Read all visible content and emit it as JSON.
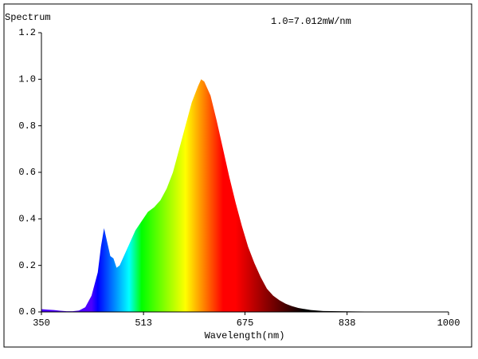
{
  "chart_data": {
    "type": "area",
    "title": "Spectrum",
    "annotation": "1.0=7.012mW/nm",
    "x_label": "Wavelength(nm)",
    "x": [
      350,
      360,
      370,
      380,
      390,
      400,
      410,
      420,
      430,
      440,
      445,
      450,
      455,
      460,
      465,
      470,
      475,
      480,
      490,
      500,
      510,
      520,
      530,
      540,
      550,
      560,
      570,
      580,
      590,
      600,
      605,
      610,
      620,
      630,
      640,
      650,
      660,
      670,
      680,
      690,
      700,
      710,
      720,
      730,
      740,
      750,
      760,
      780,
      800,
      850,
      900,
      950,
      1000
    ],
    "y": [
      0.012,
      0.01,
      0.008,
      0.005,
      0.003,
      0.003,
      0.006,
      0.02,
      0.07,
      0.17,
      0.28,
      0.36,
      0.3,
      0.24,
      0.23,
      0.19,
      0.2,
      0.23,
      0.29,
      0.35,
      0.39,
      0.43,
      0.45,
      0.48,
      0.53,
      0.6,
      0.7,
      0.8,
      0.9,
      0.97,
      1.0,
      0.99,
      0.93,
      0.82,
      0.7,
      0.58,
      0.47,
      0.37,
      0.28,
      0.21,
      0.15,
      0.1,
      0.07,
      0.05,
      0.035,
      0.025,
      0.017,
      0.008,
      0.004,
      0.002,
      0.001,
      0.001,
      0.001
    ],
    "xlim": [
      350,
      1000
    ],
    "xticks": [
      350,
      513,
      675,
      838,
      1000
    ],
    "ylim": [
      0,
      1.2
    ],
    "yticks": [
      {
        "value": 0,
        "label": "0.0"
      },
      0.2,
      0.4,
      0.6,
      0.8,
      {
        "value": 1,
        "label": "1.0"
      },
      1.2
    ],
    "grid": false
  }
}
